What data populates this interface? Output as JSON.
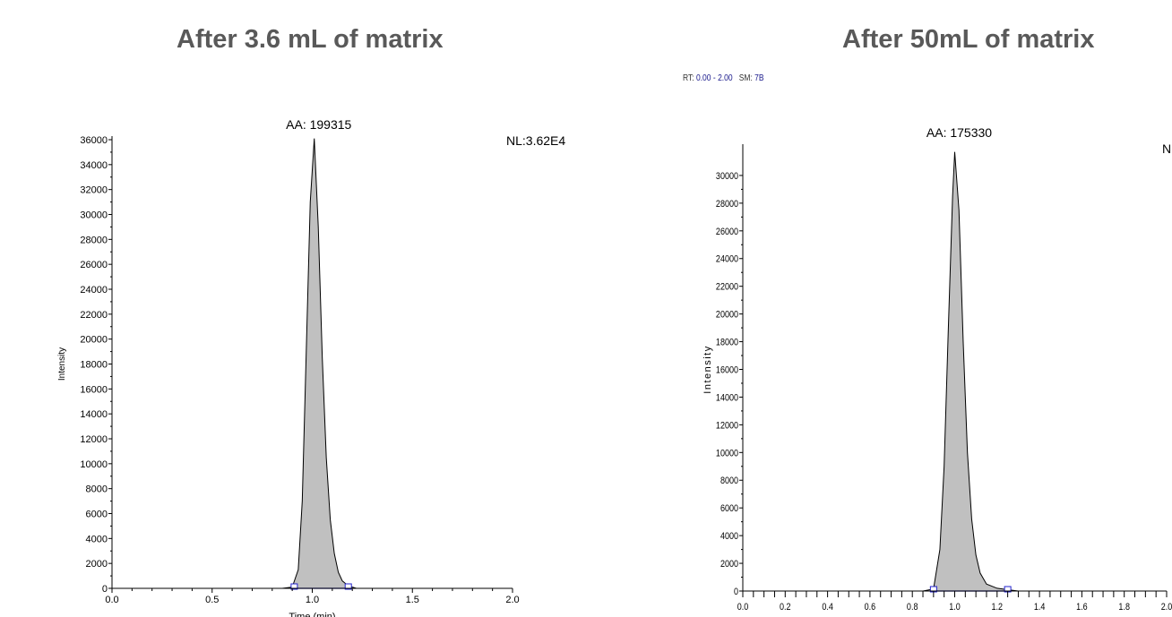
{
  "panels": [
    {
      "title": "After 3.6 mL of matrix",
      "chart_data": {
        "type": "area",
        "ylabel": "Intensity",
        "xlabel": "Time (min)",
        "xlim": [
          0.0,
          2.0
        ],
        "ylim": [
          0,
          36000
        ],
        "x_ticks": [
          "0.0",
          "0.5",
          "1.0",
          "1.5",
          "2.0"
        ],
        "y_ticks": [
          "0",
          "2000",
          "4000",
          "6000",
          "8000",
          "10000",
          "12000",
          "14000",
          "16000",
          "18000",
          "20000",
          "22000",
          "24000",
          "26000",
          "28000",
          "30000",
          "32000",
          "34000",
          "36000"
        ],
        "peak_label": "AA: 199315",
        "nl_label": "NL:3.62E4",
        "peak": {
          "apex_time": 1.01,
          "apex_intensity": 36100,
          "start_time": 0.91,
          "end_time": 1.18
        },
        "series": [
          {
            "x": [
              0.0,
              0.5,
              0.85,
              0.9,
              0.93,
              0.95,
              0.97,
              0.99,
              1.01,
              1.03,
              1.05,
              1.07,
              1.09,
              1.11,
              1.13,
              1.15,
              1.18,
              1.22,
              1.5,
              2.0
            ],
            "y": [
              0,
              0,
              0,
              100,
              1500,
              7000,
              19000,
              31000,
              36100,
              29000,
              18500,
              10500,
              5500,
              2800,
              1300,
              600,
              200,
              0,
              0,
              0
            ]
          }
        ],
        "colors": {
          "fill": "#c0c0c0",
          "line": "#000000",
          "baseline": "#2222cc"
        }
      }
    },
    {
      "title": "After 50mL of matrix",
      "rt_prefix": "RT:",
      "rt_value": "0.00 - 2.00",
      "sm_prefix": "SM:",
      "sm_value": "7B",
      "chart_data": {
        "type": "area",
        "ylabel": "Intensity",
        "xlabel": "",
        "xlim": [
          0.0,
          2.0
        ],
        "ylim": [
          0,
          32000
        ],
        "x_ticks": [
          "0.0",
          "0.2",
          "0.4",
          "0.6",
          "0.8",
          "1.0",
          "1.2",
          "1.4",
          "1.6",
          "1.8",
          "2.0"
        ],
        "y_ticks": [
          "0",
          "2000",
          "4000",
          "6000",
          "8000",
          "10000",
          "12000",
          "14000",
          "16000",
          "18000",
          "20000",
          "22000",
          "24000",
          "26000",
          "28000",
          "30000"
        ],
        "peak_label": "AA: 175330",
        "nl_label": "N",
        "peak": {
          "apex_time": 1.0,
          "apex_intensity": 31700,
          "start_time": 0.9,
          "end_time": 1.25
        },
        "series": [
          {
            "x": [
              0.0,
              0.5,
              0.85,
              0.9,
              0.93,
              0.95,
              0.97,
              0.99,
              1.0,
              1.02,
              1.04,
              1.06,
              1.08,
              1.1,
              1.12,
              1.15,
              1.2,
              1.25,
              1.3,
              2.0
            ],
            "y": [
              0,
              0,
              0,
              150,
              3000,
              9000,
              19000,
              28500,
              31700,
              27500,
              18000,
              10000,
              5200,
              2600,
              1300,
              500,
              200,
              100,
              0,
              0
            ]
          }
        ],
        "colors": {
          "fill": "#c0c0c0",
          "line": "#000000",
          "baseline": "#2222cc"
        }
      }
    }
  ]
}
